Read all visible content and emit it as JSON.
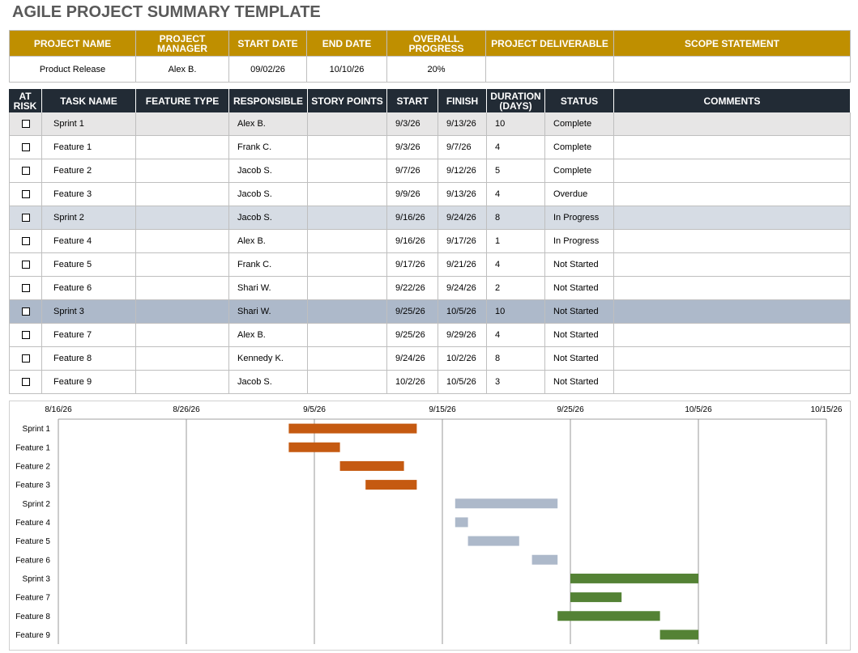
{
  "header": {
    "title": "AGILE PROJECT SUMMARY TEMPLATE"
  },
  "summary": {
    "columns": [
      "PROJECT NAME",
      "PROJECT MANAGER",
      "START DATE",
      "END DATE",
      "OVERALL PROGRESS",
      "PROJECT DELIVERABLE",
      "SCOPE STATEMENT"
    ],
    "values": [
      "Product Release",
      "Alex B.",
      "09/02/26",
      "10/10/26",
      "20%"
    ]
  },
  "tasks": {
    "columns": [
      "AT RISK",
      "TASK NAME",
      "FEATURE TYPE",
      "RESPONSIBLE",
      "STORY POINTS",
      "START",
      "FINISH",
      "DURATION (DAYS)",
      "STATUS",
      "COMMENTS"
    ],
    "rows": [
      {
        "task": "Sprint 1",
        "responsible": "Alex B.",
        "start": "9/3/26",
        "finish": "9/13/26",
        "duration": 10,
        "status": "Complete",
        "fill": "#e7e6e6"
      },
      {
        "task": "Feature 1",
        "responsible": "Frank C.",
        "start": "9/3/26",
        "finish": "9/7/26",
        "duration": 4,
        "status": "Complete",
        "fill": "#ffffff"
      },
      {
        "task": "Feature 2",
        "responsible": "Jacob S.",
        "start": "9/7/26",
        "finish": "9/12/26",
        "duration": 5,
        "status": "Complete",
        "fill": "#ffffff"
      },
      {
        "task": "Feature 3",
        "responsible": "Jacob S.",
        "start": "9/9/26",
        "finish": "9/13/26",
        "duration": 4,
        "status": "Overdue",
        "fill": "#ffffff"
      },
      {
        "task": "Sprint 2",
        "responsible": "Jacob S.",
        "start": "9/16/26",
        "finish": "9/24/26",
        "duration": 8,
        "status": "In Progress",
        "fill": "#d6dce4"
      },
      {
        "task": "Feature 4",
        "responsible": "Alex B.",
        "start": "9/16/26",
        "finish": "9/17/26",
        "duration": 1,
        "status": "In Progress",
        "fill": "#ffffff"
      },
      {
        "task": "Feature 5",
        "responsible": "Frank C.",
        "start": "9/17/26",
        "finish": "9/21/26",
        "duration": 4,
        "status": "Not Started",
        "fill": "#ffffff"
      },
      {
        "task": "Feature 6",
        "responsible": "Shari W.",
        "start": "9/22/26",
        "finish": "9/24/26",
        "duration": 2,
        "status": "Not Started",
        "fill": "#ffffff"
      },
      {
        "task": "Sprint 3",
        "responsible": "Shari W.",
        "start": "9/25/26",
        "finish": "10/5/26",
        "duration": 10,
        "status": "Not Started",
        "fill": "#adb9ca"
      },
      {
        "task": "Feature 7",
        "responsible": "Alex B.",
        "start": "9/25/26",
        "finish": "9/29/26",
        "duration": 4,
        "status": "Not Started",
        "fill": "#ffffff"
      },
      {
        "task": "Feature 8",
        "responsible": "Kennedy K.",
        "start": "9/24/26",
        "finish": "10/2/26",
        "duration": 8,
        "status": "Not Started",
        "fill": "#ffffff"
      },
      {
        "task": "Feature 9",
        "responsible": "Jacob S.",
        "start": "10/2/26",
        "finish": "10/5/26",
        "duration": 3,
        "status": "Not Started",
        "fill": "#ffffff"
      }
    ]
  },
  "gantt": {
    "type": "gantt",
    "xlim": [
      "8/16/26",
      "10/15/26"
    ],
    "xticks": [
      "8/16/26",
      "8/26/26",
      "9/5/26",
      "9/15/26",
      "9/25/26",
      "10/5/26",
      "10/15/26"
    ],
    "colors": [
      "#c55a11",
      "#c55a11",
      "#c55a11",
      "#c55a11",
      "#adb9ca",
      "#adb9ca",
      "#adb9ca",
      "#adb9ca",
      "#548235",
      "#548235",
      "#548235",
      "#548235"
    ]
  }
}
